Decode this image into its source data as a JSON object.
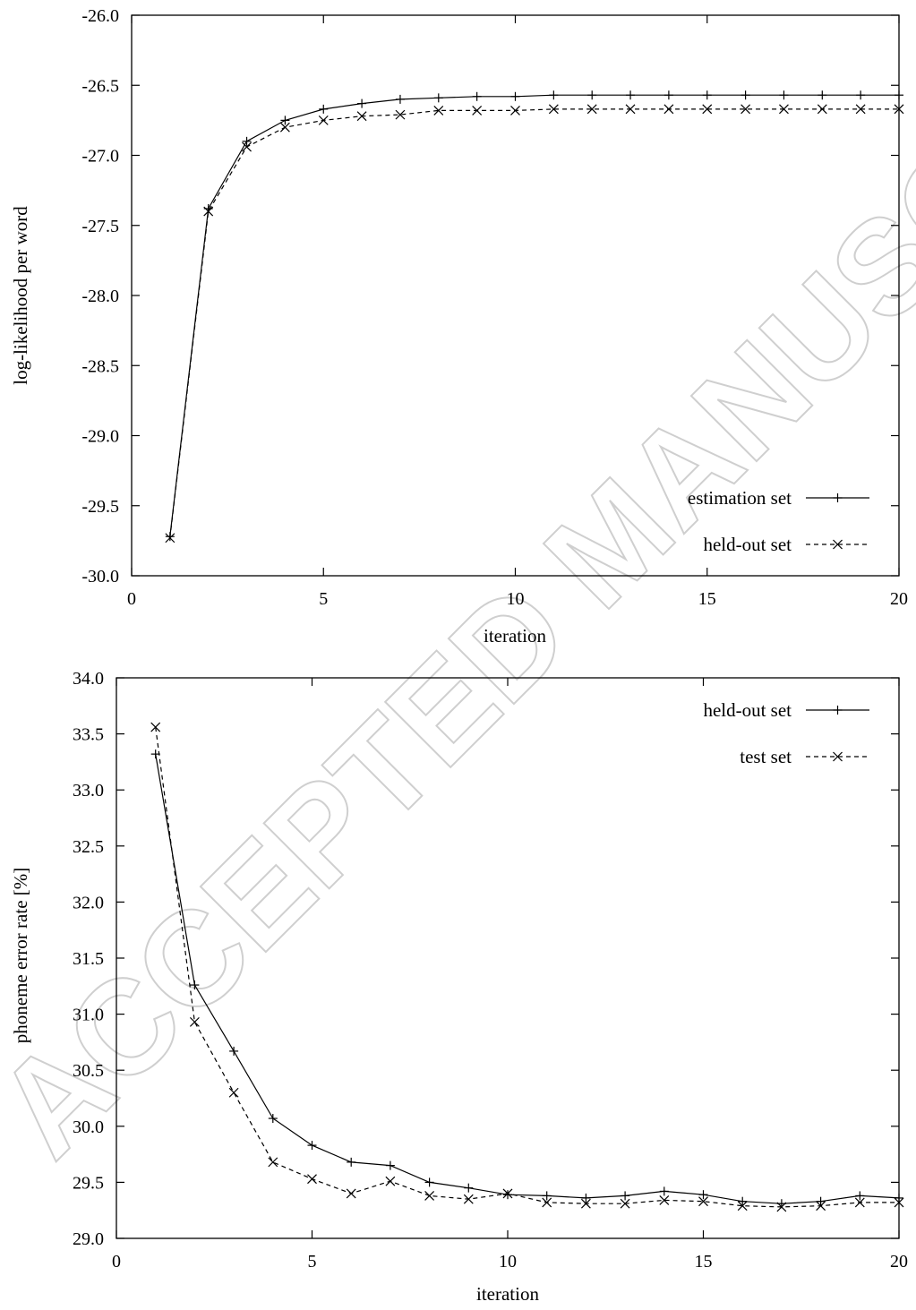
{
  "watermark": "ACCEPTED MANUSCRIPT",
  "chart_data": [
    {
      "type": "line",
      "xlabel": "iteration",
      "ylabel": "log-likelihood per word",
      "xlim": [
        0,
        20
      ],
      "ylim": [
        -30.0,
        -26.0
      ],
      "xticks": [
        "0",
        "5",
        "10",
        "15",
        "20"
      ],
      "yticks": [
        "-30.0",
        "-29.5",
        "-29.0",
        "-28.5",
        "-28.0",
        "-27.5",
        "-27.0",
        "-26.5",
        "-26.0"
      ],
      "legend_position": "bottom-right",
      "grid": false,
      "series": [
        {
          "name": "estimation set",
          "marker": "+",
          "dash": "solid",
          "x": [
            1,
            2,
            3,
            4,
            5,
            6,
            7,
            8,
            9,
            10,
            11,
            12,
            13,
            14,
            15,
            16,
            17,
            18,
            19,
            20
          ],
          "y": [
            -29.72,
            -27.38,
            -26.9,
            -26.75,
            -26.67,
            -26.63,
            -26.6,
            -26.59,
            -26.58,
            -26.58,
            -26.57,
            -26.57,
            -26.57,
            -26.57,
            -26.57,
            -26.57,
            -26.57,
            -26.57,
            -26.57,
            -26.57
          ]
        },
        {
          "name": "held-out set",
          "marker": "x",
          "dash": "dashed",
          "x": [
            1,
            2,
            3,
            4,
            5,
            6,
            7,
            8,
            9,
            10,
            11,
            12,
            13,
            14,
            15,
            16,
            17,
            18,
            19,
            20
          ],
          "y": [
            -29.73,
            -27.4,
            -26.94,
            -26.8,
            -26.75,
            -26.72,
            -26.71,
            -26.68,
            -26.68,
            -26.68,
            -26.67,
            -26.67,
            -26.67,
            -26.67,
            -26.67,
            -26.67,
            -26.67,
            -26.67,
            -26.67,
            -26.67
          ]
        }
      ]
    },
    {
      "type": "line",
      "xlabel": "iteration",
      "ylabel": "phoneme error rate [%]",
      "xlim": [
        0,
        20
      ],
      "ylim": [
        29.0,
        34.0
      ],
      "xticks": [
        "0",
        "5",
        "10",
        "15",
        "20"
      ],
      "yticks": [
        "29.0",
        "29.5",
        "30.0",
        "30.5",
        "31.0",
        "31.5",
        "32.0",
        "32.5",
        "33.0",
        "33.5",
        "34.0"
      ],
      "legend_position": "top-right",
      "grid": false,
      "series": [
        {
          "name": "held-out set",
          "marker": "+",
          "dash": "solid",
          "x": [
            1,
            2,
            3,
            4,
            5,
            6,
            7,
            8,
            9,
            10,
            11,
            12,
            13,
            14,
            15,
            16,
            17,
            18,
            19,
            20
          ],
          "y": [
            33.32,
            31.26,
            30.67,
            30.07,
            29.83,
            29.68,
            29.65,
            29.5,
            29.45,
            29.39,
            29.38,
            29.36,
            29.38,
            29.42,
            29.39,
            29.33,
            29.31,
            29.33,
            29.38,
            29.36
          ]
        },
        {
          "name": "test set",
          "marker": "x",
          "dash": "dashed",
          "x": [
            1,
            2,
            3,
            4,
            5,
            6,
            7,
            8,
            9,
            10,
            11,
            12,
            13,
            14,
            15,
            16,
            17,
            18,
            19,
            20
          ],
          "y": [
            33.56,
            30.93,
            30.3,
            29.68,
            29.53,
            29.4,
            29.51,
            29.38,
            29.35,
            29.4,
            29.32,
            29.31,
            29.31,
            29.34,
            29.33,
            29.29,
            29.28,
            29.29,
            29.32,
            29.32
          ]
        }
      ]
    }
  ]
}
